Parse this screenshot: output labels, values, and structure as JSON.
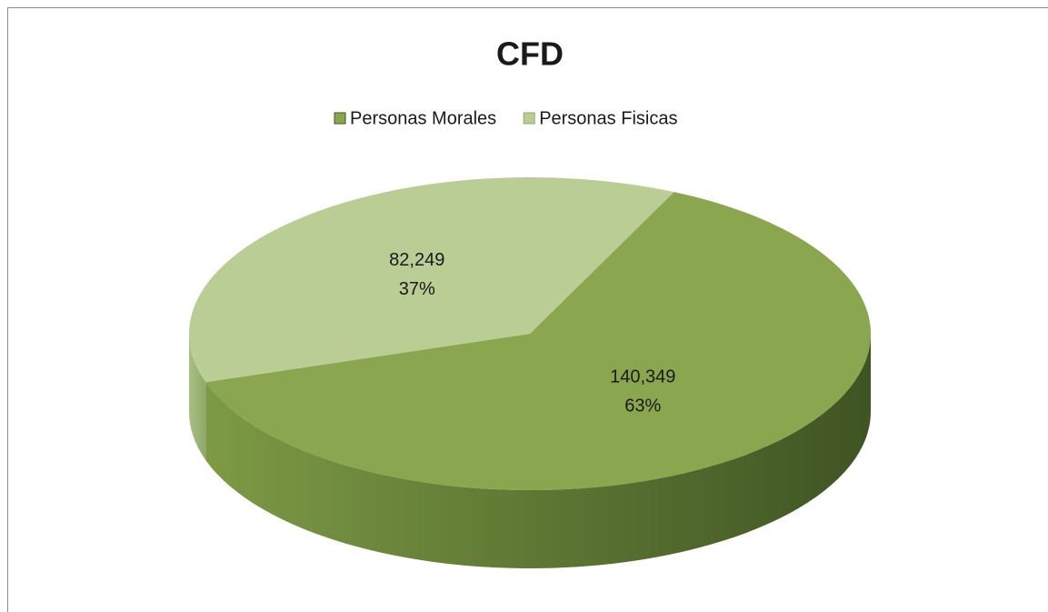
{
  "chart_data": {
    "type": "pie",
    "title": "CFD",
    "categories": [
      "Personas Morales",
      "Personas Fisicas"
    ],
    "values": [
      140349,
      82249
    ],
    "value_labels": [
      "140,349",
      "82,249"
    ],
    "percentages": [
      63,
      37
    ],
    "percentage_labels": [
      "63%",
      "37%"
    ],
    "colors": [
      "#8aa64f",
      "#b9cd95"
    ],
    "side_colors": [
      [
        "#7d9a45",
        "#3f5423"
      ],
      [
        "#a9c082",
        "#8fa86a"
      ]
    ],
    "legend": "top"
  }
}
